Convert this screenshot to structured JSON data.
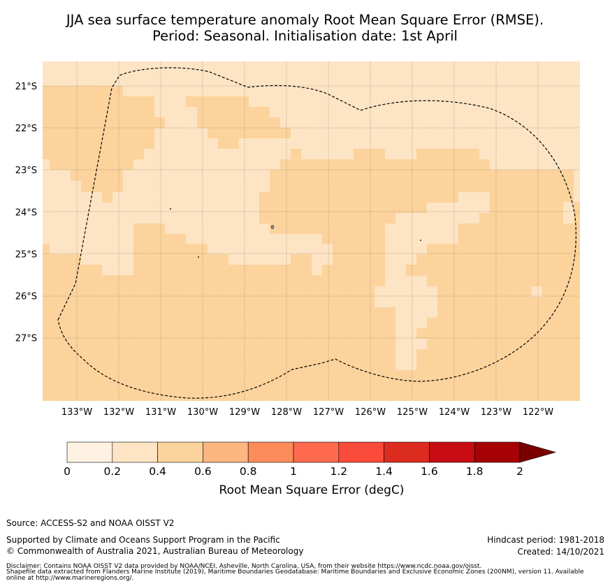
{
  "title": {
    "line1": "JJA sea surface temperature anomaly Root Mean Square Error (RMSE).",
    "line2": "Period: Seasonal. Initialisation date: 1st April"
  },
  "map": {
    "lat_ticks": [
      "21°S",
      "22°S",
      "23°S",
      "24°S",
      "25°S",
      "26°S",
      "27°S"
    ],
    "lon_ticks": [
      "133°W",
      "132°W",
      "131°W",
      "130°W",
      "129°W",
      "128°W",
      "127°W",
      "126°W",
      "125°W",
      "124°W",
      "123°W",
      "122°W"
    ],
    "lat_values": [
      -21,
      -22,
      -23,
      -24,
      -25,
      -26,
      -27
    ],
    "lon_values": [
      -133,
      -132,
      -131,
      -130,
      -129,
      -128,
      -127,
      -126,
      -125,
      -124,
      -123,
      -122
    ],
    "background_color": "#fde4c4",
    "field_color": "#fcd39c",
    "light_color": "#fde4c4",
    "eez_line": "dashed black"
  },
  "colorbar": {
    "labels": [
      "0",
      "0.2",
      "0.4",
      "0.6",
      "0.8",
      "1",
      "1.2",
      "1.4",
      "1.6",
      "1.8",
      "2"
    ],
    "colors": [
      "#fff1e2",
      "#fde4c4",
      "#fcd39c",
      "#fcb67f",
      "#fc8c59",
      "#fd6a4e",
      "#fb4b3b",
      "#dc2c1f",
      "#c70c13",
      "#a60104",
      "#7a0000"
    ],
    "title": "Root Mean Square Error (degC)",
    "extend": "max"
  },
  "footer": {
    "source": "Source: ACCESS-S2 and NOAA OISST V2",
    "supported": "Supported by Climate and Oceans Support Program in the Pacific",
    "copyright": "© Commonwealth of Australia 2021, Australian Bureau of Meteorology",
    "hindcast": "Hindcast period: 1981-2018",
    "created": "Created: 14/10/2021",
    "disclaimer1": "Disclaimer: Contains NOAA OISST V2 data provided by NOAA/NCEI, Asheville, North Carolina, USA, from their website https://www.ncdc.noaa.gov/oisst.",
    "disclaimer2": "Shapefile data extracted from Flanders Marine Institute (2019), Maritime Boundaries Geodatabase: Maritime Boundaries and Exclusive Economic Zones (200NM), version 11. Available",
    "disclaimer3": "online at http://www.marineregions.org/."
  }
}
